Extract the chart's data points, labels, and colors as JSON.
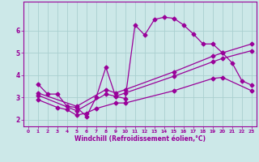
{
  "xlabel": "Windchill (Refroidissement éolien,°C)",
  "background_color": "#cce8e8",
  "grid_color": "#aacfcf",
  "line_color": "#990099",
  "xlim": [
    -0.5,
    23.5
  ],
  "ylim": [
    1.7,
    7.3
  ],
  "xticks": [
    0,
    1,
    2,
    3,
    4,
    5,
    6,
    7,
    8,
    9,
    10,
    11,
    12,
    13,
    14,
    15,
    16,
    17,
    18,
    19,
    20,
    21,
    22,
    23
  ],
  "yticks": [
    2,
    3,
    4,
    5,
    6
  ],
  "series1_x": [
    1,
    2,
    3,
    4,
    5,
    6,
    7,
    8,
    9,
    10,
    11,
    12,
    13,
    14,
    15,
    16,
    17,
    18,
    19,
    20,
    21,
    22,
    23
  ],
  "series1_y": [
    3.6,
    3.15,
    3.15,
    2.6,
    2.55,
    2.15,
    3.0,
    4.35,
    3.05,
    2.95,
    6.25,
    5.8,
    6.5,
    6.6,
    6.55,
    6.25,
    5.85,
    5.4,
    5.4,
    5.0,
    4.55,
    3.75,
    3.55
  ],
  "series2_x": [
    1,
    5,
    8,
    9,
    10,
    15,
    19,
    20,
    23
  ],
  "series2_y": [
    3.2,
    2.6,
    3.35,
    3.2,
    3.35,
    4.15,
    4.85,
    5.0,
    5.4
  ],
  "series3_x": [
    1,
    5,
    8,
    9,
    10,
    15,
    19,
    20,
    23
  ],
  "series3_y": [
    3.1,
    2.4,
    3.15,
    3.05,
    3.2,
    3.95,
    4.6,
    4.75,
    5.1
  ],
  "series4_x": [
    1,
    3,
    4,
    5,
    6,
    7,
    9,
    10,
    15,
    19,
    20,
    23
  ],
  "series4_y": [
    2.9,
    2.55,
    2.45,
    2.2,
    2.3,
    2.5,
    2.75,
    2.75,
    3.3,
    3.85,
    3.9,
    3.3
  ],
  "marker": "D",
  "markersize": 2.5,
  "linewidth": 0.9
}
